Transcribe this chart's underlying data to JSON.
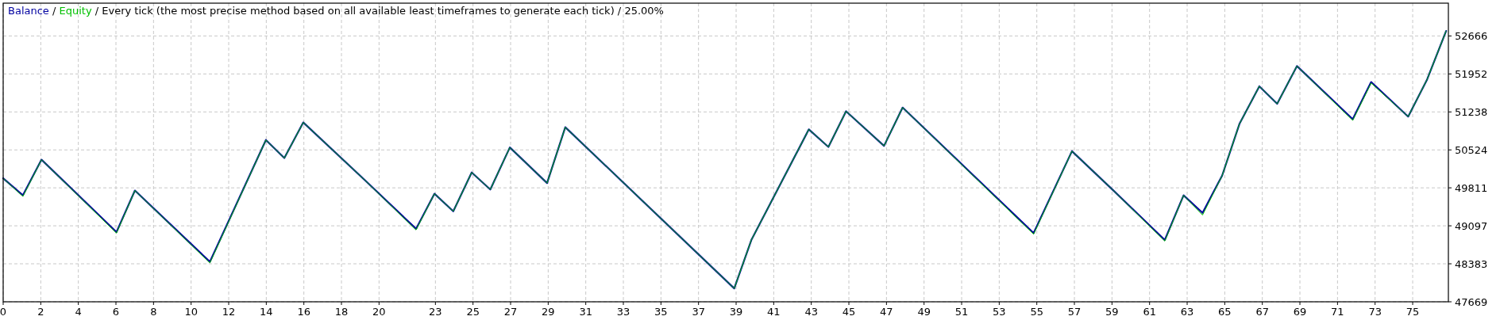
{
  "chart_data": {
    "type": "line",
    "title": "Balance / Equity / Every tick (the most precise method based on all available least timeframes to generate each tick) / 25.00%",
    "grid": true,
    "marker": "none",
    "line_style": "solid",
    "xlim": [
      0,
      76.9
    ],
    "xticks": [
      0,
      2,
      4,
      6,
      8,
      10,
      12,
      14,
      16,
      18,
      20,
      23,
      25,
      27,
      29,
      31,
      33,
      35,
      37,
      39,
      41,
      43,
      45,
      47,
      49,
      51,
      53,
      55,
      57,
      59,
      61,
      63,
      65,
      67,
      69,
      71,
      73,
      75
    ],
    "ylim": [
      47669,
      53282
    ],
    "yticks": [
      47669,
      48383,
      49097,
      49811,
      50524,
      51238,
      51952,
      52666
    ],
    "x": [
      0,
      1.05,
      2.04,
      6.03,
      7.01,
      11.0,
      13.98,
      14.96,
      15.97,
      19.26,
      21.97,
      22.95,
      23.95,
      24.93,
      25.92,
      26.96,
      28.94,
      29.91,
      38.9,
      39.81,
      42.87,
      43.91,
      44.85,
      46.87,
      47.86,
      54.83,
      56.87,
      58.96,
      61.81,
      62.81,
      63.82,
      64.86,
      65.78,
      66.84,
      67.79,
      68.84,
      71.81,
      72.79,
      74.76,
      75.77,
      76.78
    ],
    "series": [
      {
        "color": "#0000a0",
        "values": [
          49990,
          49670,
          50340,
          48980,
          49760,
          48420,
          50710,
          50370,
          51040,
          49950,
          49040,
          49700,
          49370,
          50100,
          49780,
          50570,
          49900,
          50950,
          47920,
          48830,
          50910,
          50580,
          51250,
          50600,
          51320,
          48960,
          50500,
          49800,
          48830,
          49670,
          49340,
          50040,
          51010,
          51720,
          51390,
          52100,
          51100,
          51800,
          51150,
          51850,
          52760
        ]
      },
      {
        "color": "#00c000",
        "values": [
          49990,
          49650,
          50340,
          48960,
          49760,
          48400,
          50710,
          50370,
          51040,
          49950,
          49020,
          49700,
          49370,
          50100,
          49780,
          50570,
          49900,
          50950,
          47920,
          48830,
          50910,
          50580,
          51250,
          50600,
          51320,
          48940,
          50500,
          49800,
          48810,
          49670,
          49300,
          50040,
          51010,
          51720,
          51390,
          52100,
          51080,
          51780,
          51150,
          51850,
          52760
        ]
      }
    ]
  }
}
